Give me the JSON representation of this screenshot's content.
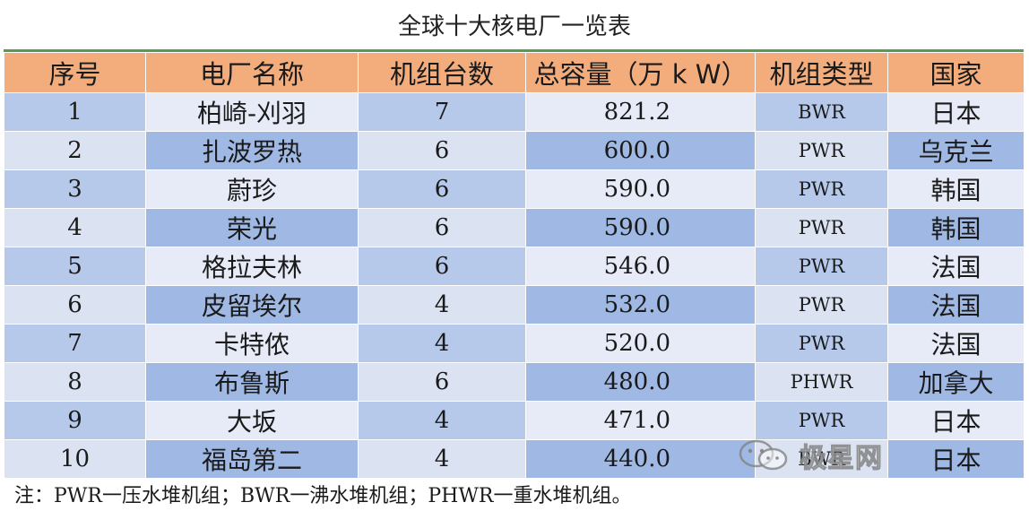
{
  "title": "全球十大核电厂一览表",
  "headers": [
    "序号",
    "电厂名称",
    "机组台数",
    "总容量（万 k W）",
    "机组类型",
    "国家"
  ],
  "rows": [
    {
      "no": "1",
      "name": "柏崎-刈羽",
      "units": "7",
      "capacity": "821.2",
      "type": "BWR",
      "country": "日本"
    },
    {
      "no": "2",
      "name": "扎波罗热",
      "units": "6",
      "capacity": "600.0",
      "type": "PWR",
      "country": "乌克兰"
    },
    {
      "no": "3",
      "name": "蔚珍",
      "units": "6",
      "capacity": "590.0",
      "type": "PWR",
      "country": "韩国"
    },
    {
      "no": "4",
      "name": "荣光",
      "units": "6",
      "capacity": "590.0",
      "type": "PWR",
      "country": "韩国"
    },
    {
      "no": "5",
      "name": "格拉夫林",
      "units": "6",
      "capacity": "546.0",
      "type": "PWR",
      "country": "法国"
    },
    {
      "no": "6",
      "name": "皮留埃尔",
      "units": "4",
      "capacity": "532.0",
      "type": "PWR",
      "country": "法国"
    },
    {
      "no": "7",
      "name": "卡特侬",
      "units": "4",
      "capacity": "520.0",
      "type": "PWR",
      "country": "法国"
    },
    {
      "no": "8",
      "name": "布鲁斯",
      "units": "6",
      "capacity": "480.0",
      "type": "PHWR",
      "country": "加拿大"
    },
    {
      "no": "9",
      "name": "大坂",
      "units": "4",
      "capacity": "471.0",
      "type": "PWR",
      "country": "日本"
    },
    {
      "no": "10",
      "name": "福岛第二",
      "units": "4",
      "capacity": "440.0",
      "type": "BWR",
      "country": "日本"
    }
  ],
  "note": "注：PWR一压水堆机组；BWR一沸水堆机组；PHWR一重水堆机组。",
  "watermark": {
    "text": "极星网",
    "icon": "wechat-icon"
  },
  "colors": {
    "header": "#f3ad7d",
    "border_top": "#5a9a4e",
    "row_dark": "#b6c9ea",
    "row_light": "#e6ebf7"
  }
}
